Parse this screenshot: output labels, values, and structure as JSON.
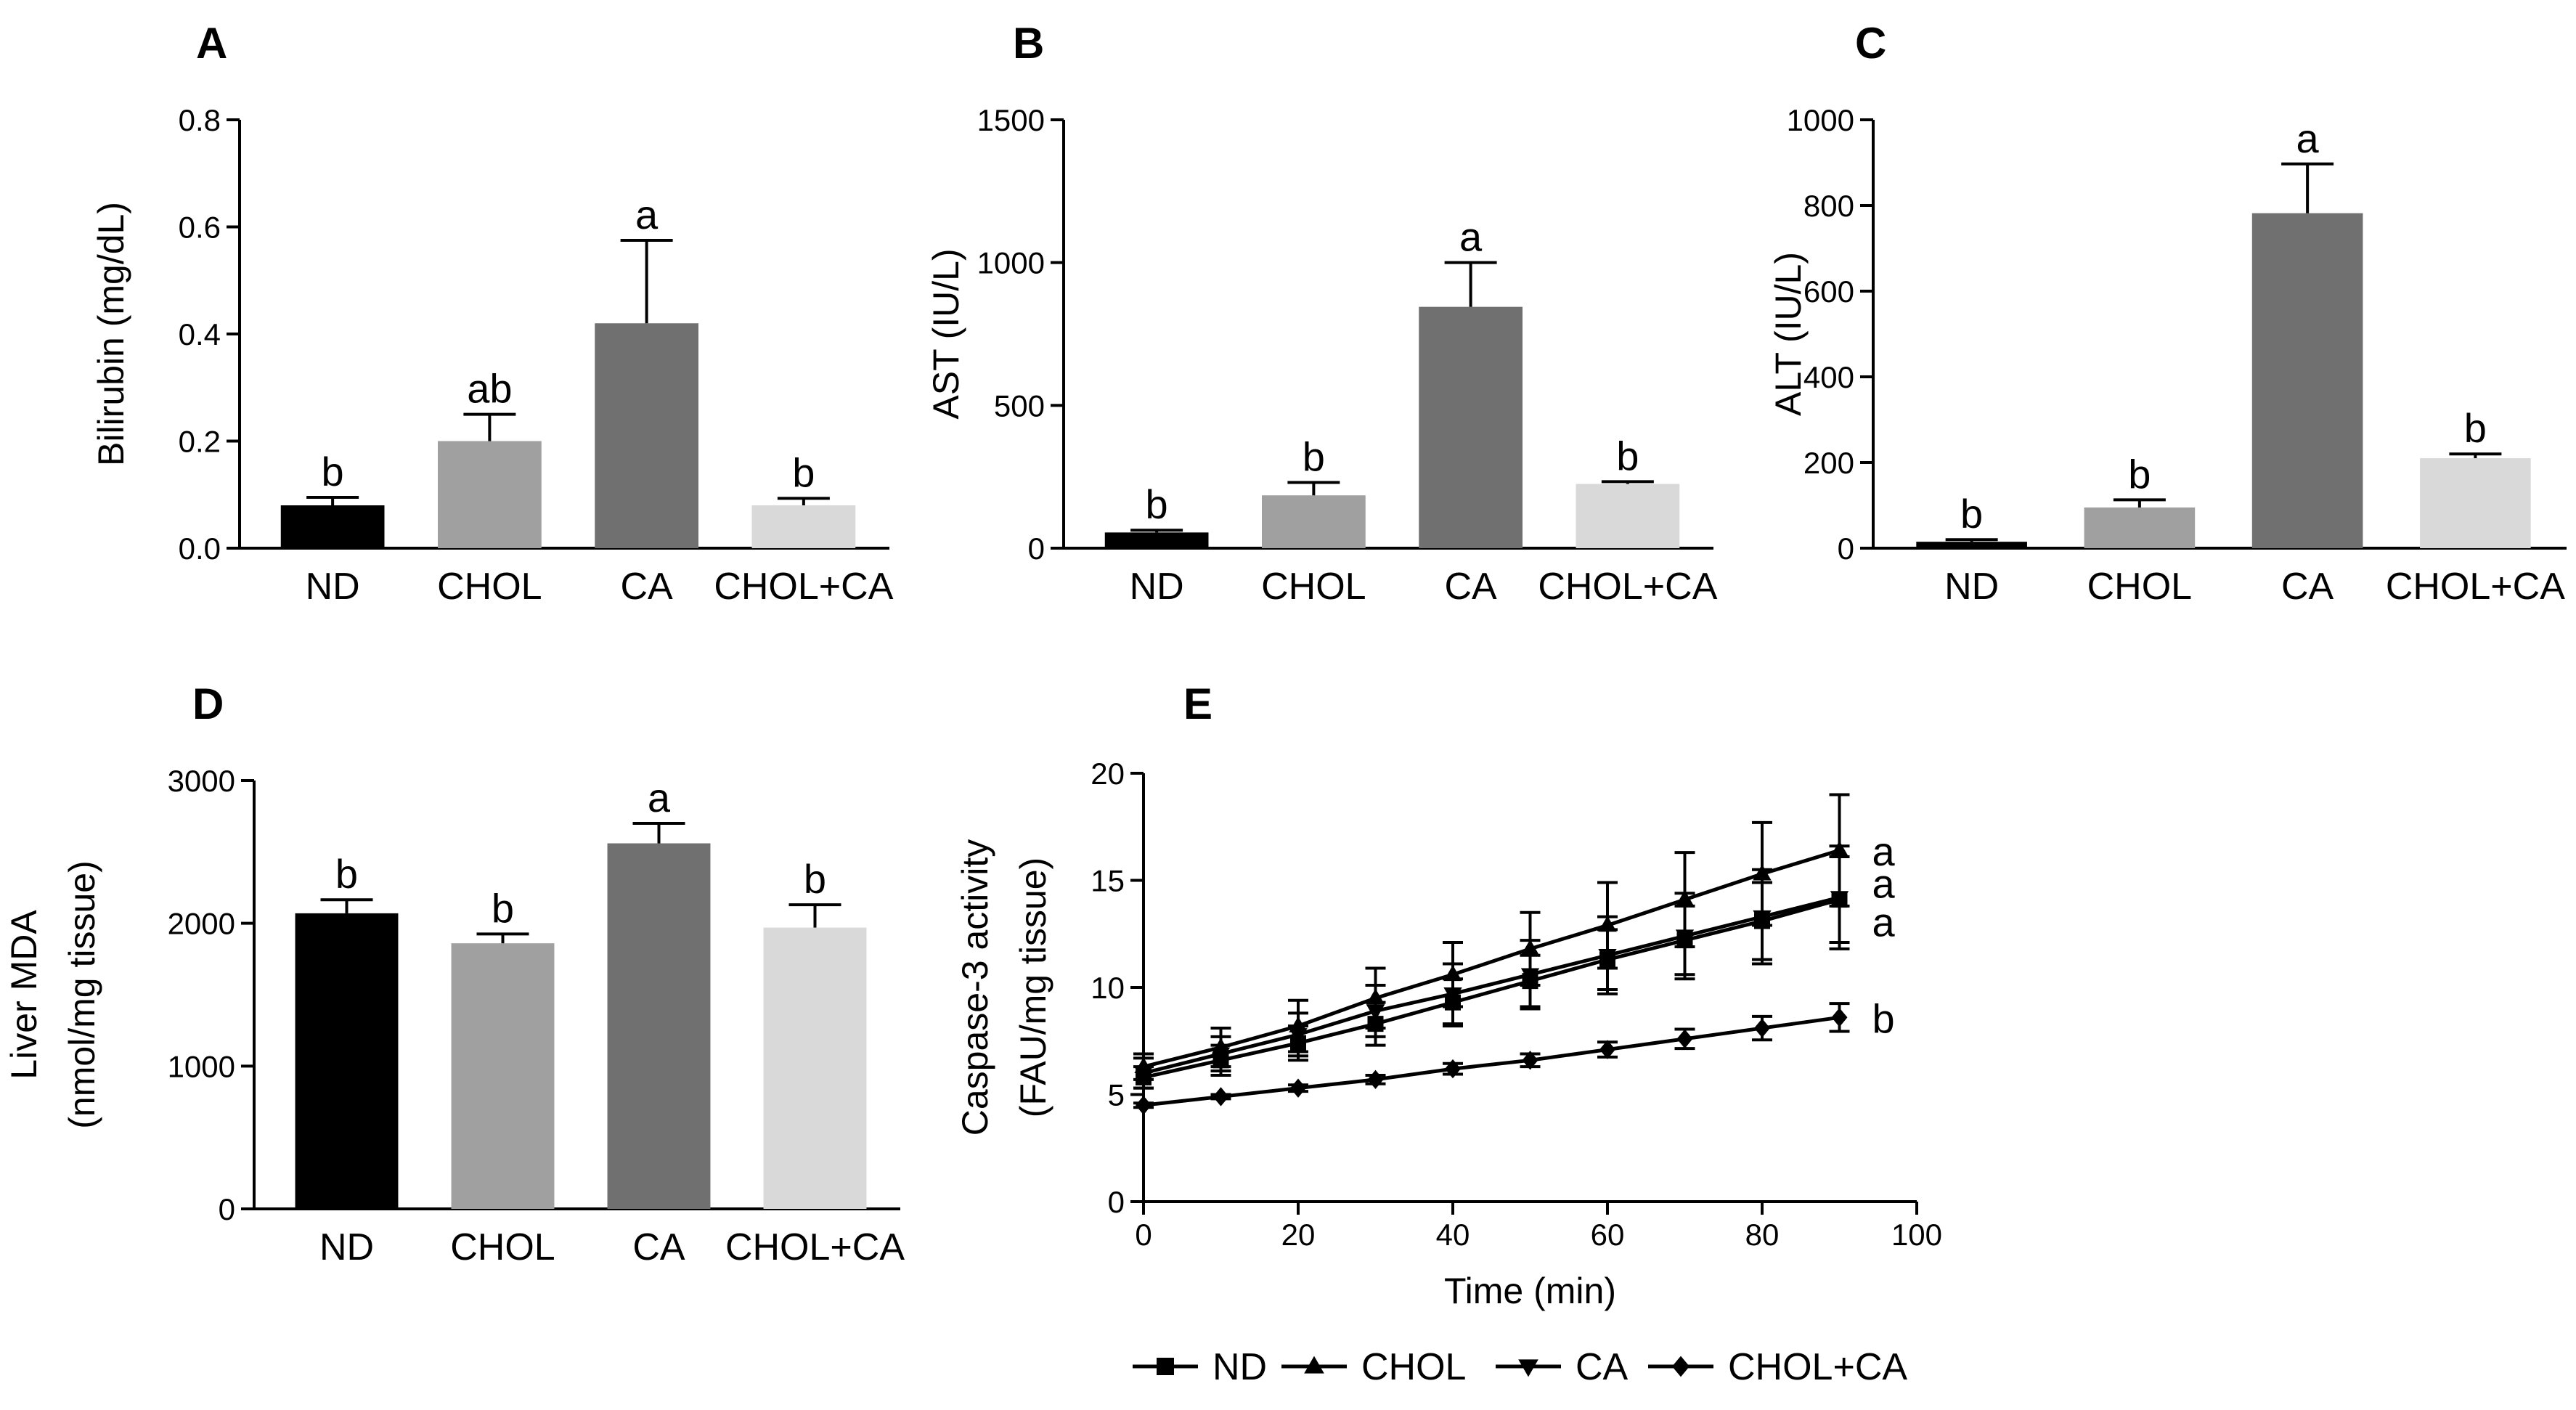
{
  "chart_data": [
    {
      "id": "A",
      "panel": "A",
      "type": "bar",
      "ylabel": "Bilirubin (mg/dL)",
      "xlabel": "",
      "categories": [
        "ND",
        "CHOL",
        "CA",
        "CHOL+CA"
      ],
      "values": [
        0.08,
        0.2,
        0.42,
        0.08
      ],
      "errors": [
        0.015,
        0.05,
        0.155,
        0.013
      ],
      "letters": [
        "b",
        "ab",
        "a",
        "b"
      ],
      "colors": [
        "#000000",
        "#a0a0a0",
        "#707070",
        "#d9d9d9"
      ],
      "ylim": [
        0,
        0.8
      ],
      "yticks": [
        0,
        0.2,
        0.4,
        0.6,
        0.8
      ],
      "ytick_labels": [
        "0.0",
        "0.2",
        "0.4",
        "0.6",
        "0.8"
      ]
    },
    {
      "id": "B",
      "panel": "B",
      "type": "bar",
      "ylabel": "AST (IU/L)",
      "xlabel": "",
      "categories": [
        "ND",
        "CHOL",
        "CA",
        "CHOL+CA"
      ],
      "values": [
        55,
        185,
        845,
        225
      ],
      "errors": [
        8,
        45,
        155,
        8
      ],
      "letters": [
        "b",
        "b",
        "a",
        "b"
      ],
      "colors": [
        "#000000",
        "#a0a0a0",
        "#707070",
        "#d9d9d9"
      ],
      "ylim": [
        0,
        1500
      ],
      "yticks": [
        0,
        500,
        1000,
        1500
      ],
      "ytick_labels": [
        "0",
        "500",
        "1000",
        "1500"
      ]
    },
    {
      "id": "C",
      "panel": "C",
      "type": "bar",
      "ylabel": "ALT (IU/L)",
      "xlabel": "",
      "categories": [
        "ND",
        "CHOL",
        "CA",
        "CHOL+CA"
      ],
      "values": [
        15,
        95,
        782,
        210
      ],
      "errors": [
        5,
        18,
        115,
        10
      ],
      "letters": [
        "b",
        "b",
        "a",
        "b"
      ],
      "colors": [
        "#000000",
        "#a0a0a0",
        "#707070",
        "#d9d9d9"
      ],
      "ylim": [
        0,
        1000
      ],
      "yticks": [
        0,
        200,
        400,
        600,
        800,
        1000
      ],
      "ytick_labels": [
        "0",
        "200",
        "400",
        "600",
        "800",
        "1000"
      ]
    },
    {
      "id": "D",
      "panel": "D",
      "type": "bar",
      "ylabel_lines": [
        "Liver MDA",
        "(nmol/mg tissue)"
      ],
      "xlabel": "",
      "categories": [
        "ND",
        "CHOL",
        "CA",
        "CHOL+CA"
      ],
      "values": [
        2070,
        1860,
        2560,
        1970
      ],
      "errors": [
        95,
        65,
        140,
        160
      ],
      "letters": [
        "b",
        "b",
        "a",
        "b"
      ],
      "colors": [
        "#000000",
        "#a0a0a0",
        "#707070",
        "#d9d9d9"
      ],
      "ylim": [
        0,
        3000
      ],
      "yticks": [
        0,
        1000,
        2000,
        3000
      ],
      "ytick_labels": [
        "0",
        "1000",
        "2000",
        "3000"
      ]
    },
    {
      "id": "E",
      "panel": "E",
      "type": "line",
      "ylabel_lines": [
        "Caspase-3 activity",
        "(FAU/mg tissue)"
      ],
      "xlabel": "Time (min)",
      "x": [
        0,
        10,
        20,
        30,
        40,
        50,
        60,
        70,
        80,
        90
      ],
      "xlim": [
        0,
        100
      ],
      "xticks": [
        0,
        20,
        40,
        60,
        80,
        100
      ],
      "xtick_labels": [
        "0",
        "20",
        "40",
        "60",
        "80",
        "100"
      ],
      "ylim": [
        0,
        20
      ],
      "yticks": [
        0,
        5,
        10,
        15,
        20
      ],
      "ytick_labels": [
        "0",
        "5",
        "10",
        "15",
        "20"
      ],
      "legend_position": "bottom",
      "series": [
        {
          "name": "ND",
          "marker": "square",
          "values": [
            5.8,
            6.6,
            7.4,
            8.3,
            9.3,
            10.3,
            11.3,
            12.2,
            13.1,
            14.1
          ],
          "errors": [
            0.5,
            0.7,
            0.8,
            1.0,
            1.1,
            1.2,
            1.4,
            1.6,
            1.8,
            2.0
          ]
        },
        {
          "name": "CHOL",
          "marker": "triangle-up",
          "values": [
            6.3,
            7.2,
            8.2,
            9.5,
            10.6,
            11.8,
            12.9,
            14.1,
            15.3,
            16.4
          ],
          "errors": [
            0.6,
            0.9,
            1.2,
            1.4,
            1.5,
            1.7,
            2.0,
            2.2,
            2.4,
            2.6
          ]
        },
        {
          "name": "CA",
          "marker": "triangle-down",
          "values": [
            6.0,
            6.9,
            7.8,
            8.9,
            9.7,
            10.6,
            11.5,
            12.4,
            13.3,
            14.2
          ],
          "errors": [
            0.7,
            0.8,
            1.0,
            1.2,
            1.4,
            1.6,
            1.8,
            2.0,
            2.2,
            2.4
          ]
        },
        {
          "name": "CHOL+CA",
          "marker": "diamond",
          "values": [
            4.5,
            4.9,
            5.3,
            5.7,
            6.2,
            6.6,
            7.1,
            7.6,
            8.1,
            8.6
          ],
          "errors": [
            0.1,
            0.1,
            0.15,
            0.2,
            0.25,
            0.3,
            0.35,
            0.45,
            0.55,
            0.65
          ]
        }
      ],
      "end_letters": [
        {
          "value": 16.3,
          "text": "a"
        },
        {
          "value": 14.8,
          "text": "a"
        },
        {
          "value": 13.0,
          "text": "a"
        },
        {
          "value": 8.5,
          "text": "b"
        }
      ]
    }
  ]
}
